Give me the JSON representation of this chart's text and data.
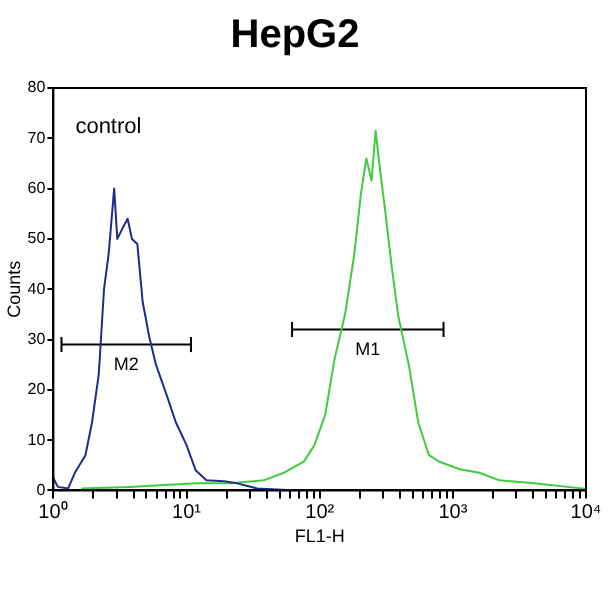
{
  "chart_data": {
    "type": "line",
    "title": "HepG2",
    "xlabel": "FL1-H",
    "ylabel": "Counts",
    "log": "x",
    "marker": "none",
    "xlim": [
      1,
      10000
    ],
    "xticks": [
      {
        "value": 1,
        "label": "10⁰"
      },
      {
        "value": 2,
        "label": null
      },
      {
        "value": 3,
        "label": null
      },
      {
        "value": 4,
        "label": null
      },
      {
        "value": 5,
        "label": null
      },
      {
        "value": 6,
        "label": null
      },
      {
        "value": 7,
        "label": null
      },
      {
        "value": 8,
        "label": null
      },
      {
        "value": 9,
        "label": null
      },
      {
        "value": 10,
        "label": "10¹"
      },
      {
        "value": 20,
        "label": null
      },
      {
        "value": 30,
        "label": null
      },
      {
        "value": 40,
        "label": null
      },
      {
        "value": 50,
        "label": null
      },
      {
        "value": 60,
        "label": null
      },
      {
        "value": 70,
        "label": null
      },
      {
        "value": 80,
        "label": null
      },
      {
        "value": 90,
        "label": null
      },
      {
        "value": 100,
        "label": "10²"
      },
      {
        "value": 200,
        "label": null
      },
      {
        "value": 300,
        "label": null
      },
      {
        "value": 400,
        "label": null
      },
      {
        "value": 500,
        "label": null
      },
      {
        "value": 600,
        "label": null
      },
      {
        "value": 700,
        "label": null
      },
      {
        "value": 800,
        "label": null
      },
      {
        "value": 900,
        "label": null
      },
      {
        "value": 1000,
        "label": "10³"
      },
      {
        "value": 2000,
        "label": null
      },
      {
        "value": 3000,
        "label": null
      },
      {
        "value": 4000,
        "label": null
      },
      {
        "value": 5000,
        "label": null
      },
      {
        "value": 6000,
        "label": null
      },
      {
        "value": 7000,
        "label": null
      },
      {
        "value": 8000,
        "label": null
      },
      {
        "value": 9000,
        "label": null
      },
      {
        "value": 10000,
        "label": "10⁴"
      }
    ],
    "ylim": [
      0,
      80
    ],
    "yticks": [
      0,
      10,
      20,
      30,
      40,
      50,
      60,
      70,
      80
    ],
    "series": [
      {
        "color": "#1f2b8f",
        "x": [
          1,
          1.08,
          1.29,
          1.45,
          1.74,
          1.95,
          2.19,
          2.4,
          2.6,
          2.86,
          3.02,
          3.29,
          3.61,
          3.89,
          4.27,
          4.68,
          5.25,
          5.89,
          7.08,
          8.32,
          10,
          11.7,
          14.1,
          19.1,
          24,
          33.9,
          67.6
        ],
        "values": [
          2.4,
          0.7,
          0.4,
          3.5,
          7,
          13.5,
          23,
          40,
          47,
          60,
          50,
          52,
          54,
          50,
          49,
          37.5,
          30.5,
          25,
          19,
          13.5,
          9,
          4,
          2,
          1.8,
          1.4,
          0.4,
          0
        ]
      },
      {
        "color": "#3ccc3c",
        "x": [
          1.62,
          3.72,
          11.7,
          21.4,
          38,
          53.7,
          75.9,
          91.2,
          110,
          129,
          155,
          182,
          204,
          224,
          245,
          263,
          282,
          309,
          347,
          389,
          468,
          550,
          661,
          794,
          1122,
          1585,
          2239,
          4074,
          7244,
          10000
        ],
        "values": [
          0.4,
          0.7,
          1.4,
          1.4,
          2,
          3.5,
          5.7,
          9,
          15,
          26,
          35,
          47,
          59,
          66,
          61.6,
          71.5,
          64.4,
          56,
          44.6,
          34.7,
          24.8,
          13.5,
          7,
          5.7,
          4.2,
          3.5,
          2,
          1.4,
          0.7,
          0.3
        ]
      },
      {
        "name": "M2",
        "color": "#000000",
        "x": [
          1.15,
          10.8
        ],
        "values": [
          29,
          29
        ],
        "errors": [
          1.5,
          1.5
        ]
      },
      {
        "name": "M1",
        "color": "#000000",
        "x": [
          62,
          851
        ],
        "values": [
          32,
          32
        ],
        "errors": [
          1.5,
          1.5
        ]
      }
    ],
    "annotations": [
      "control"
    ]
  }
}
